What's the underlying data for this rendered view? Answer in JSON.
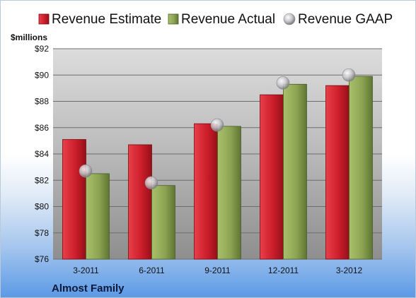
{
  "company": "Almost Family",
  "colors": {
    "estimate": "#cc1e2b",
    "actual": "#8da553",
    "gaap": "#c8c8cc"
  },
  "chart_data": {
    "type": "bar",
    "title": "",
    "ylabel": "$millions",
    "xlabel": "",
    "categories": [
      "3-2011",
      "6-2011",
      "9-2011",
      "12-2011",
      "3-2012"
    ],
    "ylim": [
      76,
      92
    ],
    "yticks": [
      76,
      78,
      80,
      82,
      84,
      86,
      88,
      90,
      92
    ],
    "ytick_labels": [
      "$76",
      "$78",
      "$80",
      "$82",
      "$84",
      "$86",
      "$88",
      "$90",
      "$92"
    ],
    "grid": true,
    "legend_position": "top",
    "series": [
      {
        "name": "Revenue Estimate",
        "kind": "bar",
        "values": [
          85.1,
          84.7,
          86.3,
          88.5,
          89.2
        ]
      },
      {
        "name": "Revenue Actual",
        "kind": "bar",
        "values": [
          82.5,
          81.6,
          86.1,
          89.3,
          89.9
        ]
      },
      {
        "name": "Revenue GAAP",
        "kind": "marker",
        "values": [
          82.7,
          81.8,
          86.2,
          89.4,
          90.0
        ]
      }
    ]
  }
}
